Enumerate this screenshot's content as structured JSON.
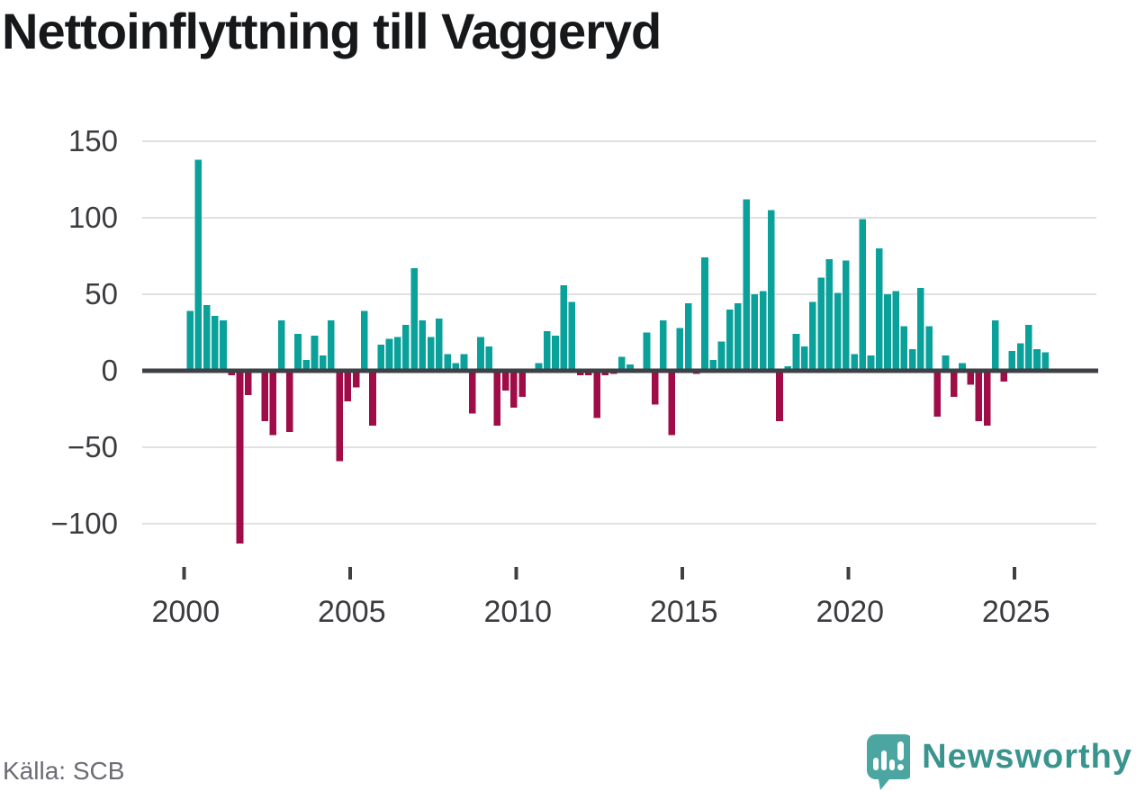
{
  "title": "Nettoinflyttning till Vaggeryd",
  "source": "Källa: SCB",
  "branding": {
    "logo_text": "Newsworthy",
    "logo_icon": "newsworthy-speech-bubble-bar-chart-icon"
  },
  "colors": {
    "positive_bar": "#0ba19b",
    "negative_bar": "#a00c47",
    "axis_line": "#3d4044",
    "gridline": "#e1e1e1",
    "tick_label": "#3c3c40",
    "title_text": "#17181a",
    "source_text": "#6c6c75",
    "logo_teal": "#3a948e",
    "logo_bubble": "#4ba5a0"
  },
  "chart_data": {
    "type": "bar",
    "title": "Nettoinflyttning till Vaggeryd",
    "xlabel": "",
    "ylabel": "",
    "grid": "horizontal",
    "legend": "none",
    "ylim": [
      -130,
      160
    ],
    "y_ticks": [
      150,
      100,
      50,
      0,
      -50,
      -100
    ],
    "x_tick_labels": [
      "2000",
      "2005",
      "2010",
      "2015",
      "2020",
      "2025"
    ],
    "x": [
      "2000 Q1",
      "2000 Q2",
      "2000 Q3",
      "2000 Q4",
      "2001 Q1",
      "2001 Q2",
      "2001 Q3",
      "2001 Q4",
      "2002 Q1",
      "2002 Q2",
      "2002 Q3",
      "2002 Q4",
      "2003 Q1",
      "2003 Q2",
      "2003 Q3",
      "2003 Q4",
      "2004 Q1",
      "2004 Q2",
      "2004 Q3",
      "2004 Q4",
      "2005 Q1",
      "2005 Q2",
      "2005 Q3",
      "2005 Q4",
      "2006 Q1",
      "2006 Q2",
      "2006 Q3",
      "2006 Q4",
      "2007 Q1",
      "2007 Q2",
      "2007 Q3",
      "2007 Q4",
      "2008 Q1",
      "2008 Q2",
      "2008 Q3",
      "2008 Q4",
      "2009 Q1",
      "2009 Q2",
      "2009 Q3",
      "2009 Q4",
      "2010 Q1",
      "2010 Q2",
      "2010 Q3",
      "2010 Q4",
      "2011 Q1",
      "2011 Q2",
      "2011 Q3",
      "2011 Q4",
      "2012 Q1",
      "2012 Q2",
      "2012 Q3",
      "2012 Q4",
      "2013 Q1",
      "2013 Q2",
      "2013 Q3",
      "2013 Q4",
      "2014 Q1",
      "2014 Q2",
      "2014 Q3",
      "2014 Q4",
      "2015 Q1",
      "2015 Q2",
      "2015 Q3",
      "2015 Q4",
      "2016 Q1",
      "2016 Q2",
      "2016 Q3",
      "2016 Q4",
      "2017 Q1",
      "2017 Q2",
      "2017 Q3",
      "2017 Q4",
      "2018 Q1",
      "2018 Q2",
      "2018 Q3",
      "2018 Q4",
      "2019 Q1",
      "2019 Q2",
      "2019 Q3",
      "2019 Q4",
      "2020 Q1",
      "2020 Q2",
      "2020 Q3",
      "2020 Q4",
      "2021 Q1",
      "2021 Q2",
      "2021 Q3",
      "2021 Q4",
      "2022 Q1",
      "2022 Q2",
      "2022 Q3",
      "2022 Q4",
      "2023 Q1",
      "2023 Q2",
      "2023 Q3",
      "2023 Q4",
      "2024 Q1",
      "2024 Q2",
      "2024 Q3",
      "2024 Q4",
      "2025 Q1",
      "2025 Q2",
      "2025 Q3",
      "2025 Q4"
    ],
    "values": [
      39,
      138,
      43,
      36,
      33,
      -3,
      -113,
      -16,
      0,
      -33,
      -42,
      33,
      -40,
      24,
      7,
      23,
      10,
      33,
      -59,
      -20,
      -11,
      39,
      -36,
      17,
      21,
      22,
      30,
      67,
      33,
      22,
      34,
      11,
      5,
      11,
      -28,
      22,
      16,
      -36,
      -13,
      -24,
      -17,
      0,
      5,
      26,
      23,
      56,
      45,
      -3,
      -3,
      -31,
      -3,
      -2,
      9,
      4,
      0,
      25,
      -22,
      33,
      -42,
      28,
      44,
      -2,
      74,
      7,
      19,
      40,
      44,
      112,
      50,
      52,
      105,
      -33,
      3,
      24,
      16,
      45,
      61,
      73,
      51,
      72,
      11,
      99,
      10,
      80,
      50,
      52,
      29,
      14,
      54,
      29,
      -30,
      10,
      -17,
      5,
      -9,
      -33,
      -36,
      33,
      -7,
      13,
      18,
      30,
      14,
      12
    ]
  }
}
